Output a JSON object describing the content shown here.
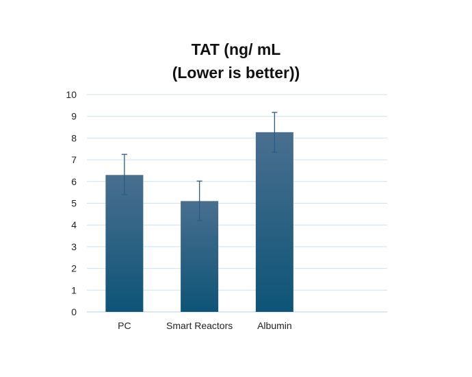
{
  "chart_data": {
    "type": "bar",
    "title_lines": [
      "TAT (ng/ mL",
      "(Lower is better))"
    ],
    "categories": [
      "PC",
      "Smart Reactors",
      "Albumin"
    ],
    "values": [
      6.3,
      5.1,
      8.27
    ],
    "error_low": [
      5.4,
      4.2,
      7.35
    ],
    "error_high": [
      7.25,
      6.02,
      9.18
    ],
    "ylim": [
      0,
      10
    ],
    "yticks": [
      "0",
      "1",
      "2",
      "3",
      "4",
      "5",
      "6",
      "7",
      "8",
      "9",
      "10"
    ],
    "grid": true,
    "colors": {
      "bar_top": "#4a6f8f",
      "bar_bottom": "#0d5477",
      "grid": "#cfe0ec",
      "axis": "#b9cddc",
      "error": "#2a5a86"
    }
  }
}
